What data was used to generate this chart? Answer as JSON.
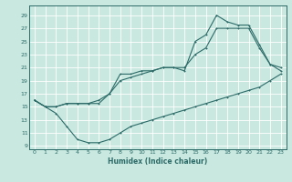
{
  "xlabel": "Humidex (Indice chaleur)",
  "bg_color": "#c8e8e0",
  "grid_color": "#ffffff",
  "line_color": "#2d6b68",
  "xlim": [
    -0.5,
    23.5
  ],
  "ylim": [
    8.5,
    30.5
  ],
  "xticks": [
    0,
    1,
    2,
    3,
    4,
    5,
    6,
    7,
    8,
    9,
    10,
    11,
    12,
    13,
    14,
    15,
    16,
    17,
    18,
    19,
    20,
    21,
    22,
    23
  ],
  "yticks": [
    9,
    11,
    13,
    15,
    17,
    19,
    21,
    23,
    25,
    27,
    29
  ],
  "curve_bottom": {
    "x": [
      0,
      1,
      2,
      3,
      4,
      5,
      6,
      7,
      8,
      9,
      10,
      11,
      12,
      13,
      14,
      15,
      16,
      17,
      18,
      19,
      20,
      21,
      22,
      23
    ],
    "y": [
      16,
      15,
      14,
      12,
      10,
      9.5,
      9.5,
      10,
      11,
      12,
      12.5,
      13,
      13.5,
      14,
      14.5,
      15,
      15.5,
      16,
      16.5,
      17,
      17.5,
      18,
      19,
      20
    ]
  },
  "curve_upper": {
    "x": [
      0,
      1,
      2,
      3,
      4,
      5,
      6,
      7,
      8,
      9,
      10,
      11,
      12,
      13,
      14,
      15,
      16,
      17,
      18,
      19,
      20,
      21,
      22,
      23
    ],
    "y": [
      16,
      15,
      15,
      15.5,
      15.5,
      15.5,
      15.5,
      17,
      20,
      20,
      20.5,
      20.5,
      21,
      21,
      20.5,
      25,
      26,
      29,
      28,
      27.5,
      27.5,
      24.5,
      21.5,
      21
    ]
  },
  "curve_mid": {
    "x": [
      0,
      1,
      2,
      3,
      4,
      5,
      6,
      7,
      8,
      9,
      10,
      11,
      12,
      13,
      14,
      15,
      16,
      17,
      18,
      19,
      20,
      21,
      22,
      23
    ],
    "y": [
      16,
      15,
      15,
      15.5,
      15.5,
      15.5,
      16,
      17,
      19,
      19.5,
      20,
      20.5,
      21,
      21,
      21,
      23,
      24,
      27,
      27,
      27,
      27,
      24,
      21.5,
      20.5
    ]
  }
}
